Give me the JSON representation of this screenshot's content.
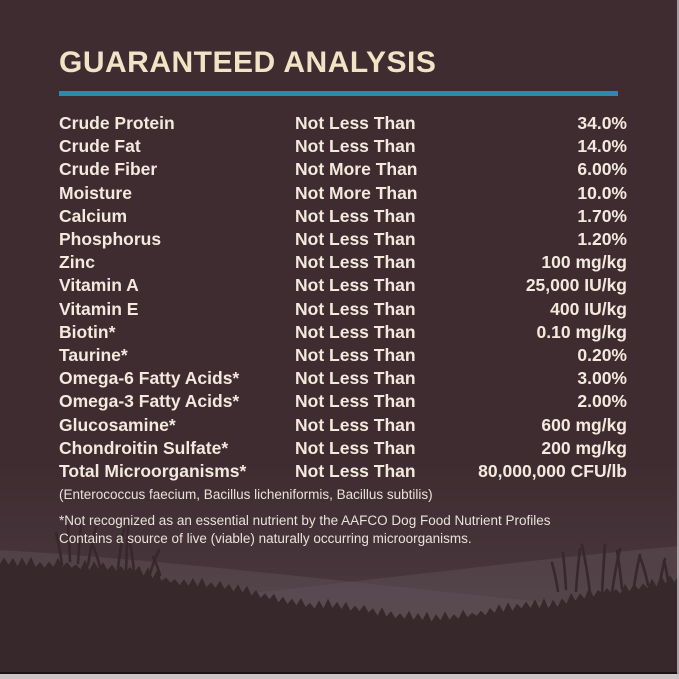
{
  "label": {
    "title": "GUARANTEED ANALYSIS",
    "accent_color": "#2c8ab2",
    "background_color": "#3e2c31",
    "text_color": "#f3e9dd",
    "table": {
      "rows": [
        {
          "nutrient": "Crude Protein",
          "qualifier": "Not Less Than",
          "value": "34.0%"
        },
        {
          "nutrient": "Crude Fat",
          "qualifier": "Not Less Than",
          "value": "14.0%"
        },
        {
          "nutrient": "Crude Fiber",
          "qualifier": "Not More Than",
          "value": "6.00%"
        },
        {
          "nutrient": "Moisture",
          "qualifier": "Not More Than",
          "value": "10.0%"
        },
        {
          "nutrient": "Calcium",
          "qualifier": "Not Less Than",
          "value": "1.70%"
        },
        {
          "nutrient": "Phosphorus",
          "qualifier": "Not Less Than",
          "value": "1.20%"
        },
        {
          "nutrient": "Zinc",
          "qualifier": "Not Less Than",
          "value": "100 mg/kg"
        },
        {
          "nutrient": "Vitamin A",
          "qualifier": "Not Less Than",
          "value": "25,000 IU/kg"
        },
        {
          "nutrient": "Vitamin E",
          "qualifier": "Not Less Than",
          "value": "400 IU/kg"
        },
        {
          "nutrient": "Biotin*",
          "qualifier": "Not Less Than",
          "value": "0.10 mg/kg"
        },
        {
          "nutrient": "Taurine*",
          "qualifier": "Not Less Than",
          "value": "0.20%"
        },
        {
          "nutrient": "Omega-6 Fatty Acids*",
          "qualifier": "Not Less Than",
          "value": "3.00%"
        },
        {
          "nutrient": "Omega-3 Fatty Acids*",
          "qualifier": "Not Less Than",
          "value": "2.00%"
        },
        {
          "nutrient": "Glucosamine*",
          "qualifier": "Not Less Than",
          "value": "600 mg/kg"
        },
        {
          "nutrient": "Chondroitin Sulfate*",
          "qualifier": "Not Less Than",
          "value": "200 mg/kg"
        },
        {
          "nutrient": "Total Microorganisms*",
          "qualifier": "Not Less Than",
          "value": "80,000,000 CFU/lb"
        }
      ]
    },
    "microorganism_note": "(Enterococcus faecium, Bacillus licheniformis, Bacillus subtilis)",
    "footnotes": [
      "*Not recognized as an essential nutrient by the AAFCO Dog Food Nutrient Profiles",
      "Contains a source of live (viable) naturally occurring microorganisms."
    ]
  }
}
